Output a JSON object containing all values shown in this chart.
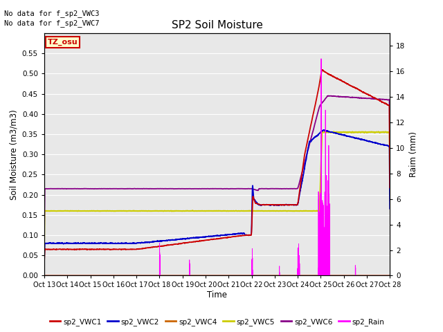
{
  "title": "SP2 Soil Moisture",
  "ylabel_left": "Soil Moisture (m3/m3)",
  "ylabel_right": "Raim (mm)",
  "xlabel": "Time",
  "no_data_text": [
    "No data for f_sp2_VWC3",
    "No data for f_sp2_VWC7"
  ],
  "tz_label": "TZ_osu",
  "x_tick_labels": [
    "Oct 13",
    "Oct 14",
    "Oct 15",
    "Oct 16",
    "Oct 17",
    "Oct 18",
    "Oct 19",
    "Oct 20",
    "Oct 21",
    "Oct 22",
    "Oct 23",
    "Oct 24",
    "Oct 25",
    "Oct 26",
    "Oct 27",
    "Oct 28"
  ],
  "ylim_left": [
    0.0,
    0.6
  ],
  "ylim_right": [
    0.0,
    19.0
  ],
  "yticks_left": [
    0.0,
    0.05,
    0.1,
    0.15,
    0.2,
    0.25,
    0.3,
    0.35,
    0.4,
    0.45,
    0.5,
    0.55
  ],
  "yticks_right": [
    0,
    2,
    4,
    6,
    8,
    10,
    12,
    14,
    16,
    18
  ],
  "background_color": "#e8e8e8",
  "fig_bg": "#ffffff",
  "color_vwc1": "#cc0000",
  "color_vwc2": "#0000cc",
  "color_vwc4": "#cc6600",
  "color_vwc5": "#cccc00",
  "color_vwc6": "#880088",
  "color_rain": "#ff00ff",
  "tz_box_fc": "#ffffcc",
  "tz_box_ec": "#cc0000",
  "tz_text_color": "#cc0000"
}
